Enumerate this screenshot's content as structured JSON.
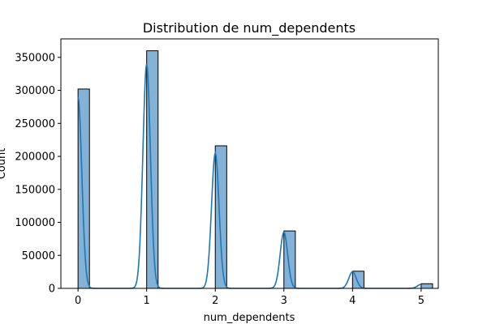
{
  "chart_data": {
    "type": "bar",
    "title": "Distribution de num_dependents",
    "xlabel": "num_dependents",
    "ylabel": "Count",
    "x_ticks": [
      "0",
      "1",
      "2",
      "3",
      "4",
      "5"
    ],
    "y_ticks": [
      "0",
      "50000",
      "100000",
      "150000",
      "200000",
      "250000",
      "300000",
      "350000"
    ],
    "xlim": [
      -0.25,
      5.25
    ],
    "ylim": [
      0,
      378000
    ],
    "bar_width": 0.1667,
    "bars": [
      {
        "x": 0,
        "value": 302000
      },
      {
        "x": 1,
        "value": 360000
      },
      {
        "x": 2,
        "value": 216000
      },
      {
        "x": 3,
        "value": 87000
      },
      {
        "x": 4,
        "value": 26000
      },
      {
        "x": 5,
        "value": 7000
      }
    ],
    "kde": {
      "peaks": [
        {
          "x": 0,
          "value": 290000
        },
        {
          "x": 1,
          "value": 340000
        },
        {
          "x": 2,
          "value": 205000
        },
        {
          "x": 3,
          "value": 85000
        },
        {
          "x": 4,
          "value": 25000
        },
        {
          "x": 5,
          "value": 6000
        }
      ],
      "bandwidth": 0.055
    },
    "colors": {
      "bar_fill": "#84b1d6",
      "bar_edge": "#000000",
      "kde_line": "#1f77b4"
    },
    "grid": false,
    "legend": "none"
  }
}
